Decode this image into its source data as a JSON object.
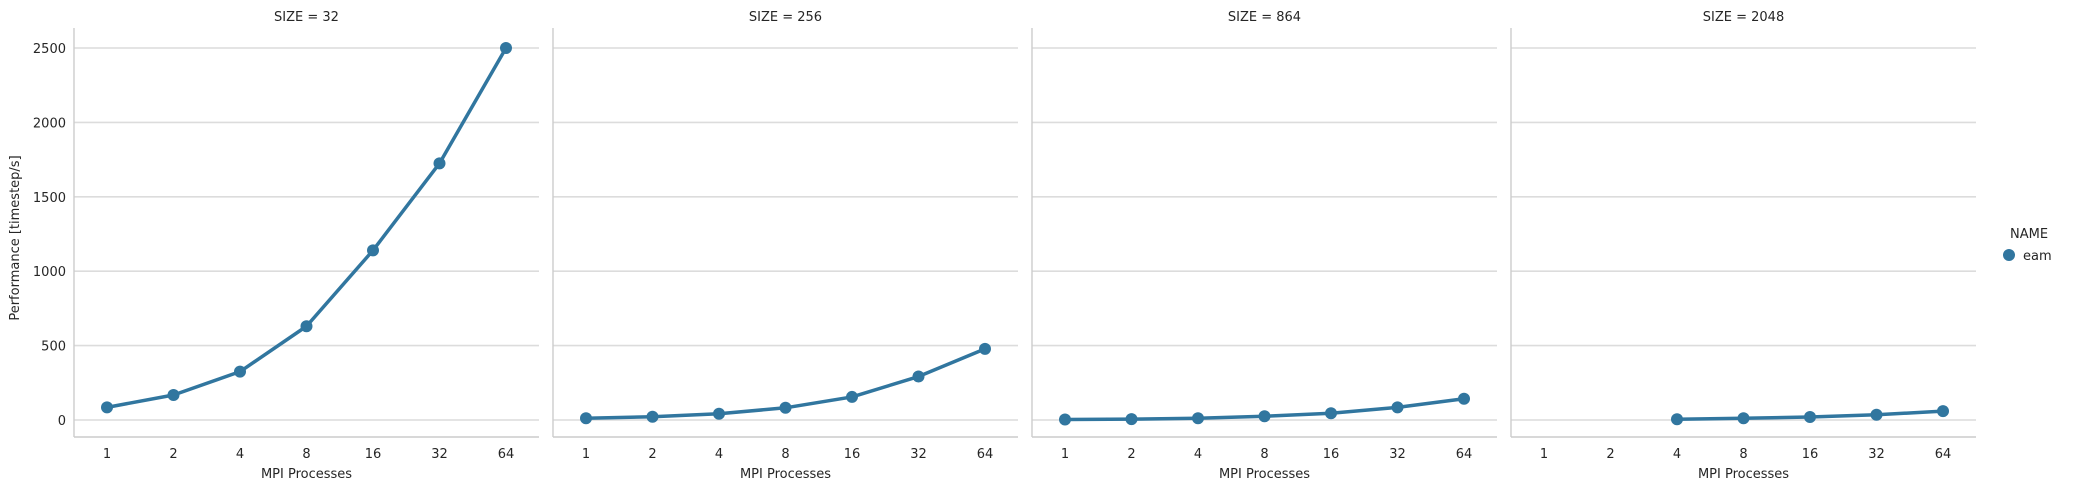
{
  "chart_data": {
    "type": "line",
    "ylabel": "Performance [timestep/s]",
    "xlabel": "MPI Processes",
    "x_categories": [
      "1",
      "2",
      "4",
      "8",
      "16",
      "32",
      "64"
    ],
    "ylim": [
      -120,
      2600
    ],
    "yticks": [
      0,
      500,
      1000,
      1500,
      2000,
      2500
    ],
    "grid": "horizontal",
    "color": "#31769f",
    "legend": {
      "title": "NAME",
      "entries": [
        "eam"
      ],
      "placement": "right"
    },
    "panels": [
      {
        "title": "SIZE = 32",
        "values": [
          85,
          168,
          325,
          630,
          1140,
          1725,
          2500
        ]
      },
      {
        "title": "SIZE = 256",
        "values": [
          12,
          22,
          42,
          82,
          155,
          292,
          478
        ]
      },
      {
        "title": "SIZE = 864",
        "values": [
          3,
          6,
          12,
          25,
          45,
          85,
          143
        ]
      },
      {
        "title": "SIZE = 2048",
        "values": [
          null,
          null,
          5,
          12,
          20,
          35,
          60
        ]
      }
    ]
  }
}
